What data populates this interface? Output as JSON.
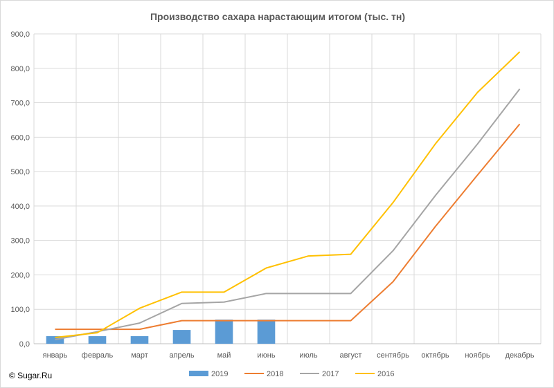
{
  "chart_data": {
    "type": "bar",
    "title": "Производство сахара нарастающим итогом (тыс. тн)",
    "categories": [
      "январь",
      "февраль",
      "март",
      "апрель",
      "май",
      "июнь",
      "июль",
      "август",
      "сентябрь",
      "октябрь",
      "ноябрь",
      "декабрь"
    ],
    "ylim": [
      0,
      900
    ],
    "yticks": [
      "0,0",
      "100,0",
      "200,0",
      "300,0",
      "400,0",
      "500,0",
      "600,0",
      "700,0",
      "800,0",
      "900,0"
    ],
    "grid": true,
    "legend_position": "bottom",
    "series": [
      {
        "name": "2019",
        "kind": "bar",
        "color": "#5b9bd5",
        "values": [
          22,
          22,
          22,
          40,
          70,
          70,
          null,
          null,
          null,
          null,
          null,
          null
        ]
      },
      {
        "name": "2018",
        "kind": "line",
        "color": "#ed7d31",
        "values": [
          42,
          42,
          42,
          67,
          67,
          67,
          67,
          67,
          180,
          340,
          490,
          638
        ]
      },
      {
        "name": "2017",
        "kind": "line",
        "color": "#a5a5a5",
        "values": [
          12,
          35,
          60,
          117,
          121,
          146,
          146,
          146,
          270,
          430,
          580,
          740
        ]
      },
      {
        "name": "2016",
        "kind": "line",
        "color": "#ffc000",
        "values": [
          18,
          32,
          103,
          150,
          150,
          220,
          255,
          260,
          410,
          580,
          730,
          848
        ]
      }
    ]
  },
  "copyright": "© Sugar.Ru"
}
